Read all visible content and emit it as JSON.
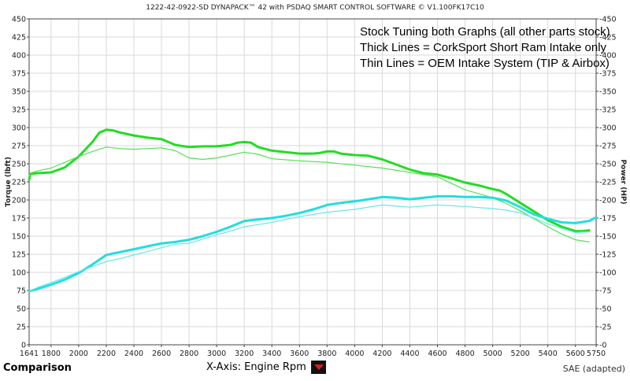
{
  "header": {
    "title": "1222-42-0922-SD DYNAPACK™ 42 with PSDAQ SMART CONTROL SOFTWARE © V1.100FK17C10"
  },
  "footer": {
    "left_label": "Comparison",
    "xaxis_label": "X-Axis: Engine Rpm",
    "standard": "SAE (adapted)"
  },
  "chart_data": {
    "type": "line",
    "title": "",
    "xlabel": "",
    "ylabel": "Torque (lbft)",
    "y2label": "Power (HP)",
    "xlim": [
      1641,
      5750
    ],
    "ylim": [
      0,
      450
    ],
    "y2lim": [
      0,
      450
    ],
    "x_ticks": [
      1641,
      1800,
      2000,
      2200,
      2400,
      2600,
      2800,
      3000,
      3200,
      3400,
      3600,
      3800,
      4000,
      4200,
      4400,
      4600,
      4800,
      5000,
      5200,
      5400,
      5600,
      5750
    ],
    "y_ticks": [
      0,
      25,
      50,
      75,
      100,
      125,
      150,
      175,
      200,
      225,
      250,
      275,
      300,
      325,
      350,
      375,
      400,
      425,
      450
    ],
    "y2_ticks": [
      0,
      25,
      50,
      75,
      100,
      125,
      150,
      175,
      200,
      225,
      250,
      275,
      300,
      325,
      350,
      375,
      400,
      425,
      450
    ],
    "grid": true,
    "annotations": [
      "Stock Tuning both Graphs (all other parts stock)",
      "Thick Lines = CorkSport Short Ram Intake only",
      "Thin Lines = OEM Intake System (TIP & Airbox)"
    ],
    "series": [
      {
        "style": "thick",
        "color": "#22dd22",
        "x": [
          1641,
          1650,
          1700,
          1800,
          1900,
          2000,
          2100,
          2150,
          2200,
          2250,
          2300,
          2400,
          2500,
          2600,
          2650,
          2700,
          2800,
          2900,
          3000,
          3100,
          3150,
          3200,
          3250,
          3300,
          3400,
          3500,
          3600,
          3700,
          3750,
          3800,
          3850,
          3900,
          4000,
          4100,
          4200,
          4300,
          4400,
          4500,
          4600,
          4700,
          4800,
          4900,
          5000,
          5050,
          5100,
          5200,
          5300,
          5400,
          5500,
          5600,
          5650,
          5700
        ],
        "values": [
          228,
          236,
          237,
          238,
          245,
          260,
          280,
          293,
          297,
          296,
          293,
          289,
          286,
          284,
          280,
          276,
          273,
          274,
          274,
          276,
          279,
          280,
          279,
          273,
          268,
          266,
          264,
          264,
          265,
          267,
          267,
          264,
          262,
          261,
          256,
          249,
          242,
          237,
          235,
          230,
          224,
          220,
          215,
          213,
          208,
          196,
          184,
          172,
          163,
          157,
          157,
          158
        ]
      },
      {
        "style": "thin",
        "color": "#55e055",
        "x": [
          1641,
          1650,
          1700,
          1800,
          1900,
          2000,
          2100,
          2200,
          2300,
          2400,
          2500,
          2600,
          2700,
          2800,
          2900,
          3000,
          3100,
          3200,
          3300,
          3400,
          3600,
          3800,
          4000,
          4200,
          4400,
          4600,
          4800,
          5000,
          5100,
          5200,
          5300,
          5400,
          5500,
          5600,
          5700
        ],
        "values": [
          233,
          237,
          240,
          244,
          252,
          260,
          267,
          273,
          271,
          270,
          271,
          272,
          268,
          258,
          256,
          258,
          262,
          266,
          263,
          257,
          254,
          252,
          248,
          244,
          238,
          232,
          214,
          203,
          195,
          185,
          174,
          163,
          153,
          145,
          142
        ]
      },
      {
        "style": "thick",
        "color": "#22dede",
        "x": [
          1641,
          1700,
          1800,
          1900,
          2000,
          2100,
          2200,
          2300,
          2400,
          2500,
          2600,
          2700,
          2800,
          2900,
          3000,
          3100,
          3200,
          3300,
          3400,
          3500,
          3600,
          3700,
          3800,
          3900,
          4000,
          4100,
          4200,
          4300,
          4400,
          4500,
          4600,
          4700,
          4800,
          4900,
          5000,
          5100,
          5200,
          5300,
          5400,
          5500,
          5600,
          5700,
          5750
        ],
        "values": [
          74,
          77,
          83,
          90,
          99,
          111,
          124,
          128,
          132,
          136,
          140,
          142,
          145,
          150,
          156,
          163,
          171,
          173,
          175,
          178,
          182,
          187,
          193,
          196,
          198,
          201,
          204,
          203,
          201,
          203,
          205,
          205,
          204,
          204,
          203,
          199,
          190,
          180,
          174,
          169,
          168,
          171,
          176
        ]
      },
      {
        "style": "thin",
        "color": "#66e8e8",
        "x": [
          1641,
          1700,
          1800,
          1900,
          2000,
          2100,
          2200,
          2300,
          2400,
          2500,
          2600,
          2700,
          2800,
          2900,
          3000,
          3100,
          3200,
          3300,
          3400,
          3500,
          3600,
          3800,
          4000,
          4200,
          4400,
          4600,
          4800,
          5000,
          5100,
          5200,
          5300,
          5400,
          5500,
          5600,
          5700
        ],
        "values": [
          74,
          79,
          86,
          93,
          101,
          108,
          115,
          119,
          124,
          129,
          134,
          139,
          140,
          146,
          152,
          157,
          163,
          166,
          169,
          173,
          177,
          183,
          187,
          193,
          190,
          193,
          191,
          188,
          186,
          182,
          175,
          167,
          161,
          155,
          156
        ]
      }
    ]
  }
}
